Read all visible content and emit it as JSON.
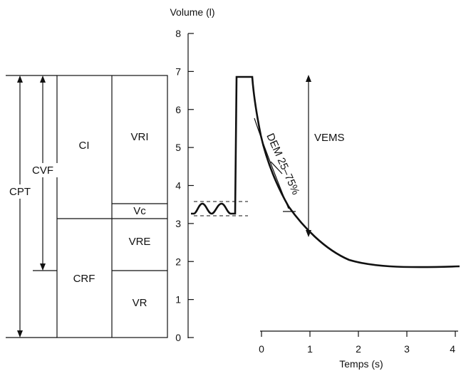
{
  "volume_boxes": {
    "CPT": "CPT",
    "CVF": "CVF",
    "CI": "CI",
    "CRF": "CRF",
    "VRI": "VRI",
    "Vc": "Vc",
    "VRE": "VRE",
    "VR": "VR"
  },
  "curve_labels": {
    "VEMS": "VEMS",
    "DEM": "DEM 25–75%"
  },
  "chart_data": {
    "type": "line",
    "ylabel": "Volume (l)",
    "xlabel": "Temps (s)",
    "yticks": [
      0,
      1,
      2,
      3,
      4,
      5,
      6,
      7,
      8
    ],
    "xticks": [
      0,
      1,
      2,
      3,
      4
    ],
    "ylim": [
      0,
      8
    ],
    "xlim": [
      -0.5,
      4
    ]
  }
}
